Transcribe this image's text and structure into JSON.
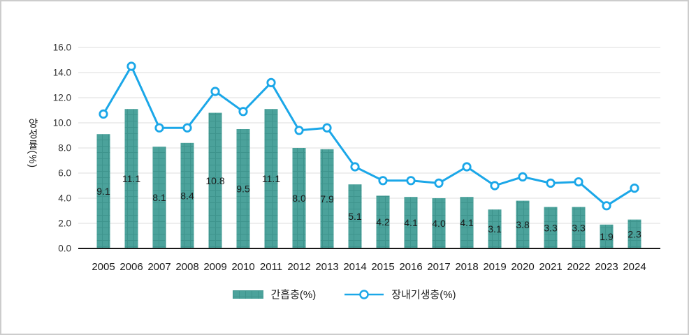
{
  "chart_data": {
    "type": "bar+line",
    "title": "",
    "ylabel": "양성률(%)",
    "xlabel": "",
    "ylim": [
      0,
      16
    ],
    "y_ticks": [
      "0.0",
      "2.0",
      "4.0",
      "6.0",
      "8.0",
      "10.0",
      "12.0",
      "14.0",
      "16.0"
    ],
    "grid": true,
    "legend_position": "bottom",
    "categories": [
      "2005",
      "2006",
      "2007",
      "2008",
      "2009",
      "2010",
      "2011",
      "2012",
      "2013",
      "2014",
      "2015",
      "2016",
      "2017",
      "2018",
      "2019",
      "2020",
      "2021",
      "2022",
      "2023",
      "2024"
    ],
    "series": [
      {
        "name": "간흡충(%)",
        "type": "bar",
        "color": "#4ba29b",
        "pattern_line_color": "#3e948d",
        "values": [
          9.1,
          11.1,
          8.1,
          8.4,
          10.8,
          9.5,
          11.1,
          8.0,
          7.9,
          5.1,
          4.2,
          4.1,
          4.0,
          4.1,
          3.1,
          3.8,
          3.3,
          3.3,
          1.9,
          2.3
        ],
        "value_labels": [
          "9.1",
          "11.1",
          "8.1",
          "8.4",
          "10.8",
          "9.5",
          "11.1",
          "8.0",
          "7.9",
          "5.1",
          "4.2",
          "4.1",
          "4.0",
          "4.1",
          "3.1",
          "3.8",
          "3.3",
          "3.3",
          "1.9",
          "2.3"
        ]
      },
      {
        "name": "장내기생충(%)",
        "type": "line",
        "color": "#1ba7e8",
        "marker": "circle-open",
        "values": [
          10.7,
          14.5,
          9.6,
          9.6,
          12.5,
          10.9,
          13.2,
          9.4,
          9.6,
          6.5,
          5.4,
          5.4,
          5.2,
          6.5,
          5.0,
          5.7,
          5.2,
          5.3,
          3.4,
          4.8
        ]
      }
    ],
    "colors": {
      "gridline": "#dcdcdc",
      "axis_line": "#1a1a1a",
      "tick_text": "#333333",
      "label_text": "#1a1a1a",
      "card_border": "#cccccc"
    }
  }
}
